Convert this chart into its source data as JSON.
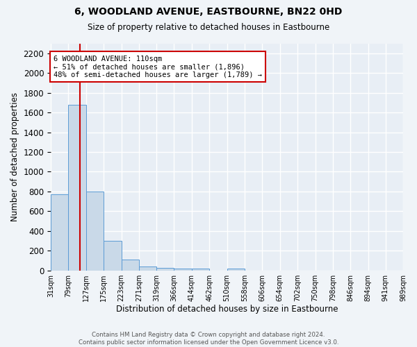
{
  "title": "6, WOODLAND AVENUE, EASTBOURNE, BN22 0HD",
  "subtitle": "Size of property relative to detached houses in Eastbourne",
  "xlabel": "Distribution of detached houses by size in Eastbourne",
  "ylabel": "Number of detached properties",
  "bar_color": "#c9d9e8",
  "bar_edge_color": "#5b9bd5",
  "background_color": "#e8eef5",
  "fig_background_color": "#f0f4f8",
  "grid_color": "#ffffff",
  "annotation_text": "6 WOODLAND AVENUE: 110sqm\n← 51% of detached houses are smaller (1,896)\n48% of semi-detached houses are larger (1,789) →",
  "red_line_x": 110,
  "footer": "Contains HM Land Registry data © Crown copyright and database right 2024.\nContains public sector information licensed under the Open Government Licence v3.0.",
  "bin_edges": [
    31,
    79,
    127,
    175,
    223,
    271,
    319,
    366,
    414,
    462,
    510,
    558,
    606,
    654,
    702,
    750,
    798,
    846,
    894,
    941,
    989
  ],
  "bin_labels": [
    "31sqm",
    "79sqm",
    "127sqm",
    "175sqm",
    "223sqm",
    "271sqm",
    "319sqm",
    "366sqm",
    "414sqm",
    "462sqm",
    "510sqm",
    "558sqm",
    "606sqm",
    "654sqm",
    "702sqm",
    "750sqm",
    "798sqm",
    "846sqm",
    "894sqm",
    "941sqm",
    "989sqm"
  ],
  "counts": [
    770,
    1680,
    800,
    300,
    110,
    40,
    28,
    22,
    20,
    0,
    22,
    0,
    0,
    0,
    0,
    0,
    0,
    0,
    0,
    0
  ],
  "ylim": [
    0,
    2300
  ],
  "yticks": [
    0,
    200,
    400,
    600,
    800,
    1000,
    1200,
    1400,
    1600,
    1800,
    2000,
    2200
  ]
}
